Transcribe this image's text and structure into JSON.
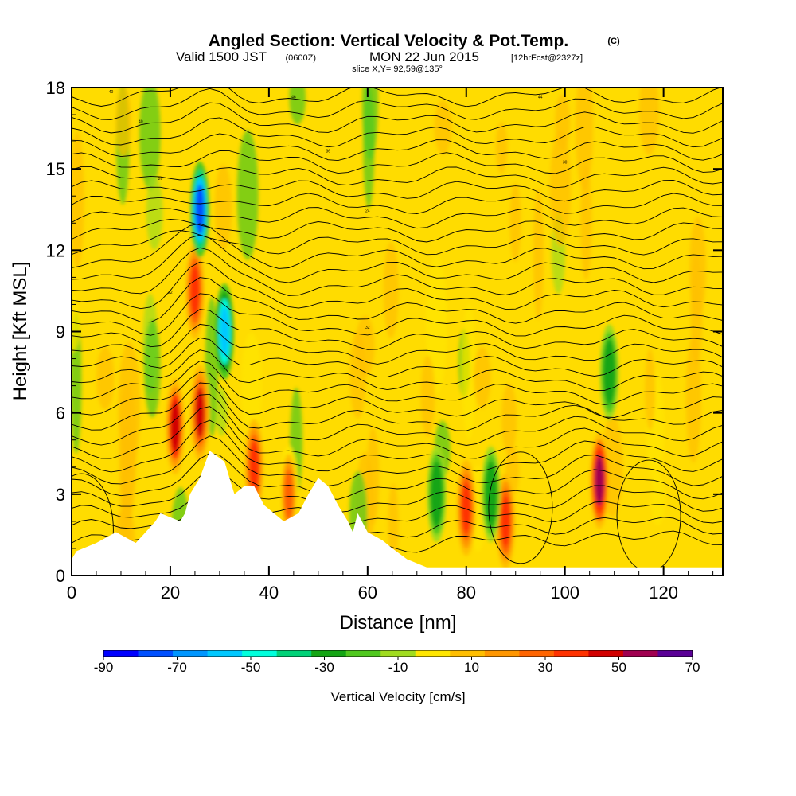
{
  "chart_data": {
    "type": "heatmap",
    "title": "Angled Section: Vertical Velocity & Pot.Temp.",
    "title_unit": "(C)",
    "subtitle": {
      "valid_prefix": "Valid 1500 JST",
      "utc": "(0600Z)",
      "date": "MON 22 Jun 2015",
      "fcst": "[12hrFcst@2327z]"
    },
    "slice_label": "slice X,Y= 92,59@135°",
    "xlabel": "Distance [nm]",
    "ylabel": "Height [Kft MSL]",
    "xlim": [
      0,
      132
    ],
    "ylim": [
      0,
      18
    ],
    "x_ticks": [
      "0",
      "20",
      "40",
      "60",
      "80",
      "100",
      "120"
    ],
    "y_ticks": [
      "0",
      "3",
      "6",
      "9",
      "12",
      "15",
      "18"
    ],
    "x_tick_values": [
      0,
      20,
      40,
      60,
      80,
      100,
      120
    ],
    "y_tick_values": [
      0,
      3,
      6,
      9,
      12,
      15,
      18
    ],
    "colorbar": {
      "label": "Vertical Velocity [cm/s]",
      "range": [
        -90,
        70
      ],
      "tick_labels": [
        "-90",
        "-70",
        "-50",
        "-30",
        "-10",
        "10",
        "30",
        "50",
        "70"
      ],
      "tick_values": [
        -90,
        -70,
        -50,
        -30,
        -10,
        10,
        30,
        50,
        70
      ],
      "levels": [
        -90,
        -80,
        -70,
        -60,
        -50,
        -40,
        -30,
        -20,
        -10,
        0,
        10,
        20,
        30,
        40,
        50,
        60,
        70
      ],
      "colors": [
        "#0000ff",
        "#0050ff",
        "#0096ff",
        "#00c8ff",
        "#00ffdc",
        "#00d278",
        "#14a514",
        "#50c81e",
        "#a0dc1e",
        "#ffe600",
        "#ffbe00",
        "#ff9600",
        "#ff6400",
        "#ff3200",
        "#d20000",
        "#a00050",
        "#5a0096"
      ]
    },
    "grid": false,
    "features": [
      {
        "kind": "updraft",
        "x": 21,
        "z": 5.5,
        "w": 55
      },
      {
        "kind": "updraft",
        "x": 25,
        "z": 10.5,
        "w": 45
      },
      {
        "kind": "updraft",
        "x": 26,
        "z": 6,
        "w": 50
      },
      {
        "kind": "downdraft",
        "x": 26,
        "z": 13.5,
        "w": -75
      },
      {
        "kind": "downdraft",
        "x": 31,
        "z": 9,
        "w": -55
      },
      {
        "kind": "updraft",
        "x": 37,
        "z": 4,
        "w": 40
      },
      {
        "kind": "updraft",
        "x": 44,
        "z": 3,
        "w": 35
      },
      {
        "kind": "updraft",
        "x": 80,
        "z": 2.5,
        "w": 40
      },
      {
        "kind": "downdraft",
        "x": 74,
        "z": 3,
        "w": -30
      },
      {
        "kind": "updraft",
        "x": 88,
        "z": 2,
        "w": 45
      },
      {
        "kind": "downdraft",
        "x": 85,
        "z": 3,
        "w": -30
      },
      {
        "kind": "updraft",
        "x": 107,
        "z": 3.5,
        "w": 65
      },
      {
        "kind": "downdraft",
        "x": 109,
        "z": 7.5,
        "w": -30
      }
    ],
    "terrain_kft": [
      {
        "x": 0,
        "z": 0.6
      },
      {
        "x": 1,
        "z": 0.9
      },
      {
        "x": 5,
        "z": 1.2
      },
      {
        "x": 9,
        "z": 1.6
      },
      {
        "x": 13,
        "z": 1.2
      },
      {
        "x": 15,
        "z": 1.6
      },
      {
        "x": 17,
        "z": 2.0
      },
      {
        "x": 18,
        "z": 2.3
      },
      {
        "x": 22,
        "z": 2.0
      },
      {
        "x": 23,
        "z": 2.3
      },
      {
        "x": 24,
        "z": 3.0
      },
      {
        "x": 26,
        "z": 3.6
      },
      {
        "x": 28,
        "z": 4.6
      },
      {
        "x": 31,
        "z": 4.2
      },
      {
        "x": 32,
        "z": 3.6
      },
      {
        "x": 33,
        "z": 3.0
      },
      {
        "x": 35,
        "z": 3.3
      },
      {
        "x": 37,
        "z": 3.3
      },
      {
        "x": 39,
        "z": 2.6
      },
      {
        "x": 41,
        "z": 2.3
      },
      {
        "x": 43,
        "z": 2.0
      },
      {
        "x": 46,
        "z": 2.3
      },
      {
        "x": 48,
        "z": 3.0
      },
      {
        "x": 50,
        "z": 3.6
      },
      {
        "x": 52,
        "z": 3.3
      },
      {
        "x": 54,
        "z": 2.6
      },
      {
        "x": 56,
        "z": 2.0
      },
      {
        "x": 57,
        "z": 1.6
      },
      {
        "x": 58,
        "z": 2.3
      },
      {
        "x": 60,
        "z": 1.6
      },
      {
        "x": 63,
        "z": 1.3
      },
      {
        "x": 65,
        "z": 1.0
      },
      {
        "x": 68,
        "z": 0.6
      },
      {
        "x": 72,
        "z": 0.3
      },
      {
        "x": 132,
        "z": 0.3
      }
    ],
    "theta_contour_labels": [
      "40",
      "46",
      "44",
      "40",
      "36",
      "30",
      "26",
      "24",
      "22",
      "32"
    ]
  }
}
